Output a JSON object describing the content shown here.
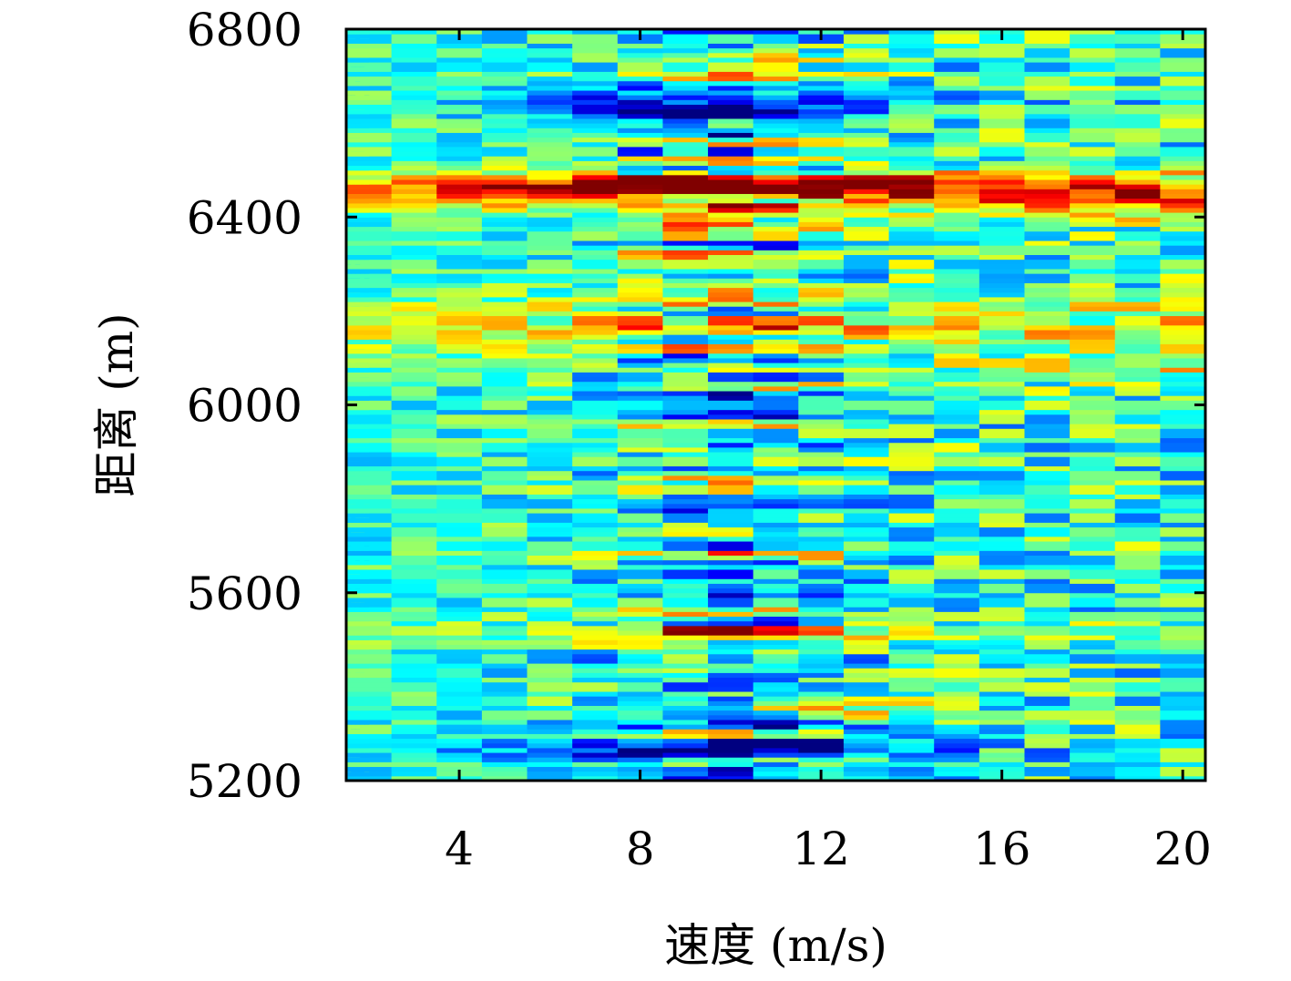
{
  "chart_data": {
    "type": "heatmap",
    "title": "",
    "xlabel": "速度 (m/s)",
    "ylabel": "距离 (m)",
    "xlim": [
      1.5,
      20.5
    ],
    "ylim": [
      5200,
      6800
    ],
    "x_ticks": [
      4,
      8,
      12,
      16,
      20
    ],
    "y_ticks": [
      5200,
      5600,
      6000,
      6400,
      6800
    ],
    "colormap": "jet",
    "grid": false,
    "legend": "none",
    "x_columns": [
      2,
      3,
      4,
      5,
      6,
      7,
      8,
      9,
      10,
      11,
      12,
      13,
      14,
      15,
      16,
      17,
      18,
      19,
      20
    ],
    "features": [
      {
        "name": "strong-return",
        "range": 6460,
        "peak_speed": 10,
        "max_value": 1.0
      },
      {
        "name": "dip",
        "range": 6640,
        "peak_speed": 9.5,
        "min_value": 0.05
      },
      {
        "name": "secondary-return",
        "range": 6170,
        "value": 0.68
      },
      {
        "name": "return",
        "range": 5510,
        "value": 0.72
      },
      {
        "name": "dip",
        "range": 5265,
        "min_value": 0.15
      }
    ]
  }
}
